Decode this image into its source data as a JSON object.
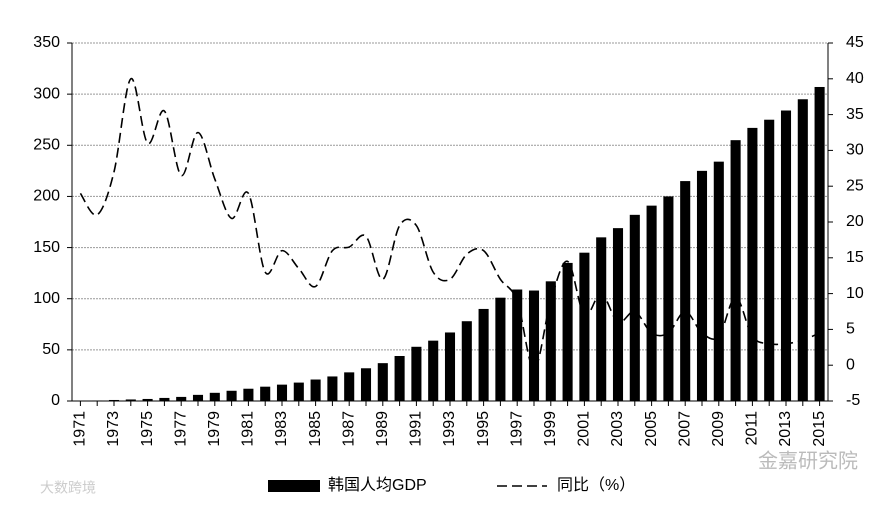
{
  "chart_data": {
    "type": "bar_line",
    "categories": [
      "1971",
      null,
      "1973",
      null,
      "1975",
      null,
      "1977",
      null,
      "1979",
      null,
      "1981",
      null,
      "1983",
      null,
      "1985",
      null,
      "1987",
      null,
      "1989",
      null,
      "1991",
      null,
      "1993",
      null,
      "1995",
      null,
      "1997",
      null,
      "1999",
      null,
      "2001",
      null,
      "2003",
      null,
      "2005",
      null,
      "2007",
      null,
      "2009",
      null,
      "2011",
      null,
      "2013",
      null,
      "2015"
    ],
    "series": [
      {
        "name": "韩国人均GDP",
        "type": "bar",
        "color": "#000000",
        "values": [
          0.3,
          0.5,
          1,
          1.5,
          2,
          3,
          4,
          6,
          8,
          10,
          12,
          14,
          16,
          18,
          21,
          24,
          28,
          32,
          37,
          44,
          53,
          59,
          67,
          78,
          90,
          101,
          109,
          108,
          117,
          135,
          145,
          160,
          169,
          182,
          191,
          200,
          215,
          225,
          234,
          255,
          267,
          275,
          284,
          295,
          307
        ]
      },
      {
        "name": "同比（%）",
        "type": "line",
        "axis": "y2",
        "color": "#000000",
        "dashed": true,
        "values": [
          24,
          21,
          27,
          40,
          31,
          35.5,
          26.5,
          32.5,
          26,
          20.5,
          24,
          13,
          16,
          13.5,
          11,
          16,
          16.5,
          18,
          12,
          19.5,
          19.5,
          13,
          12,
          15.5,
          16,
          12,
          9,
          -0.5,
          9,
          14.5,
          7,
          10,
          6,
          7.5,
          4.5,
          4.5,
          7.5,
          4.5,
          4,
          9.5,
          4,
          3,
          3,
          3.5,
          4.5
        ]
      }
    ],
    "ylim": [
      0,
      350
    ],
    "yticks": [
      0,
      50,
      100,
      150,
      200,
      250,
      300,
      350
    ],
    "y2lim": [
      -5,
      45
    ],
    "y2ticks": [
      -5,
      0,
      5,
      10,
      15,
      20,
      25,
      30,
      35,
      40,
      45
    ],
    "grid": true,
    "legend": "bottom",
    "watermarks": [
      "金嘉研究院",
      "大数跨境"
    ]
  }
}
